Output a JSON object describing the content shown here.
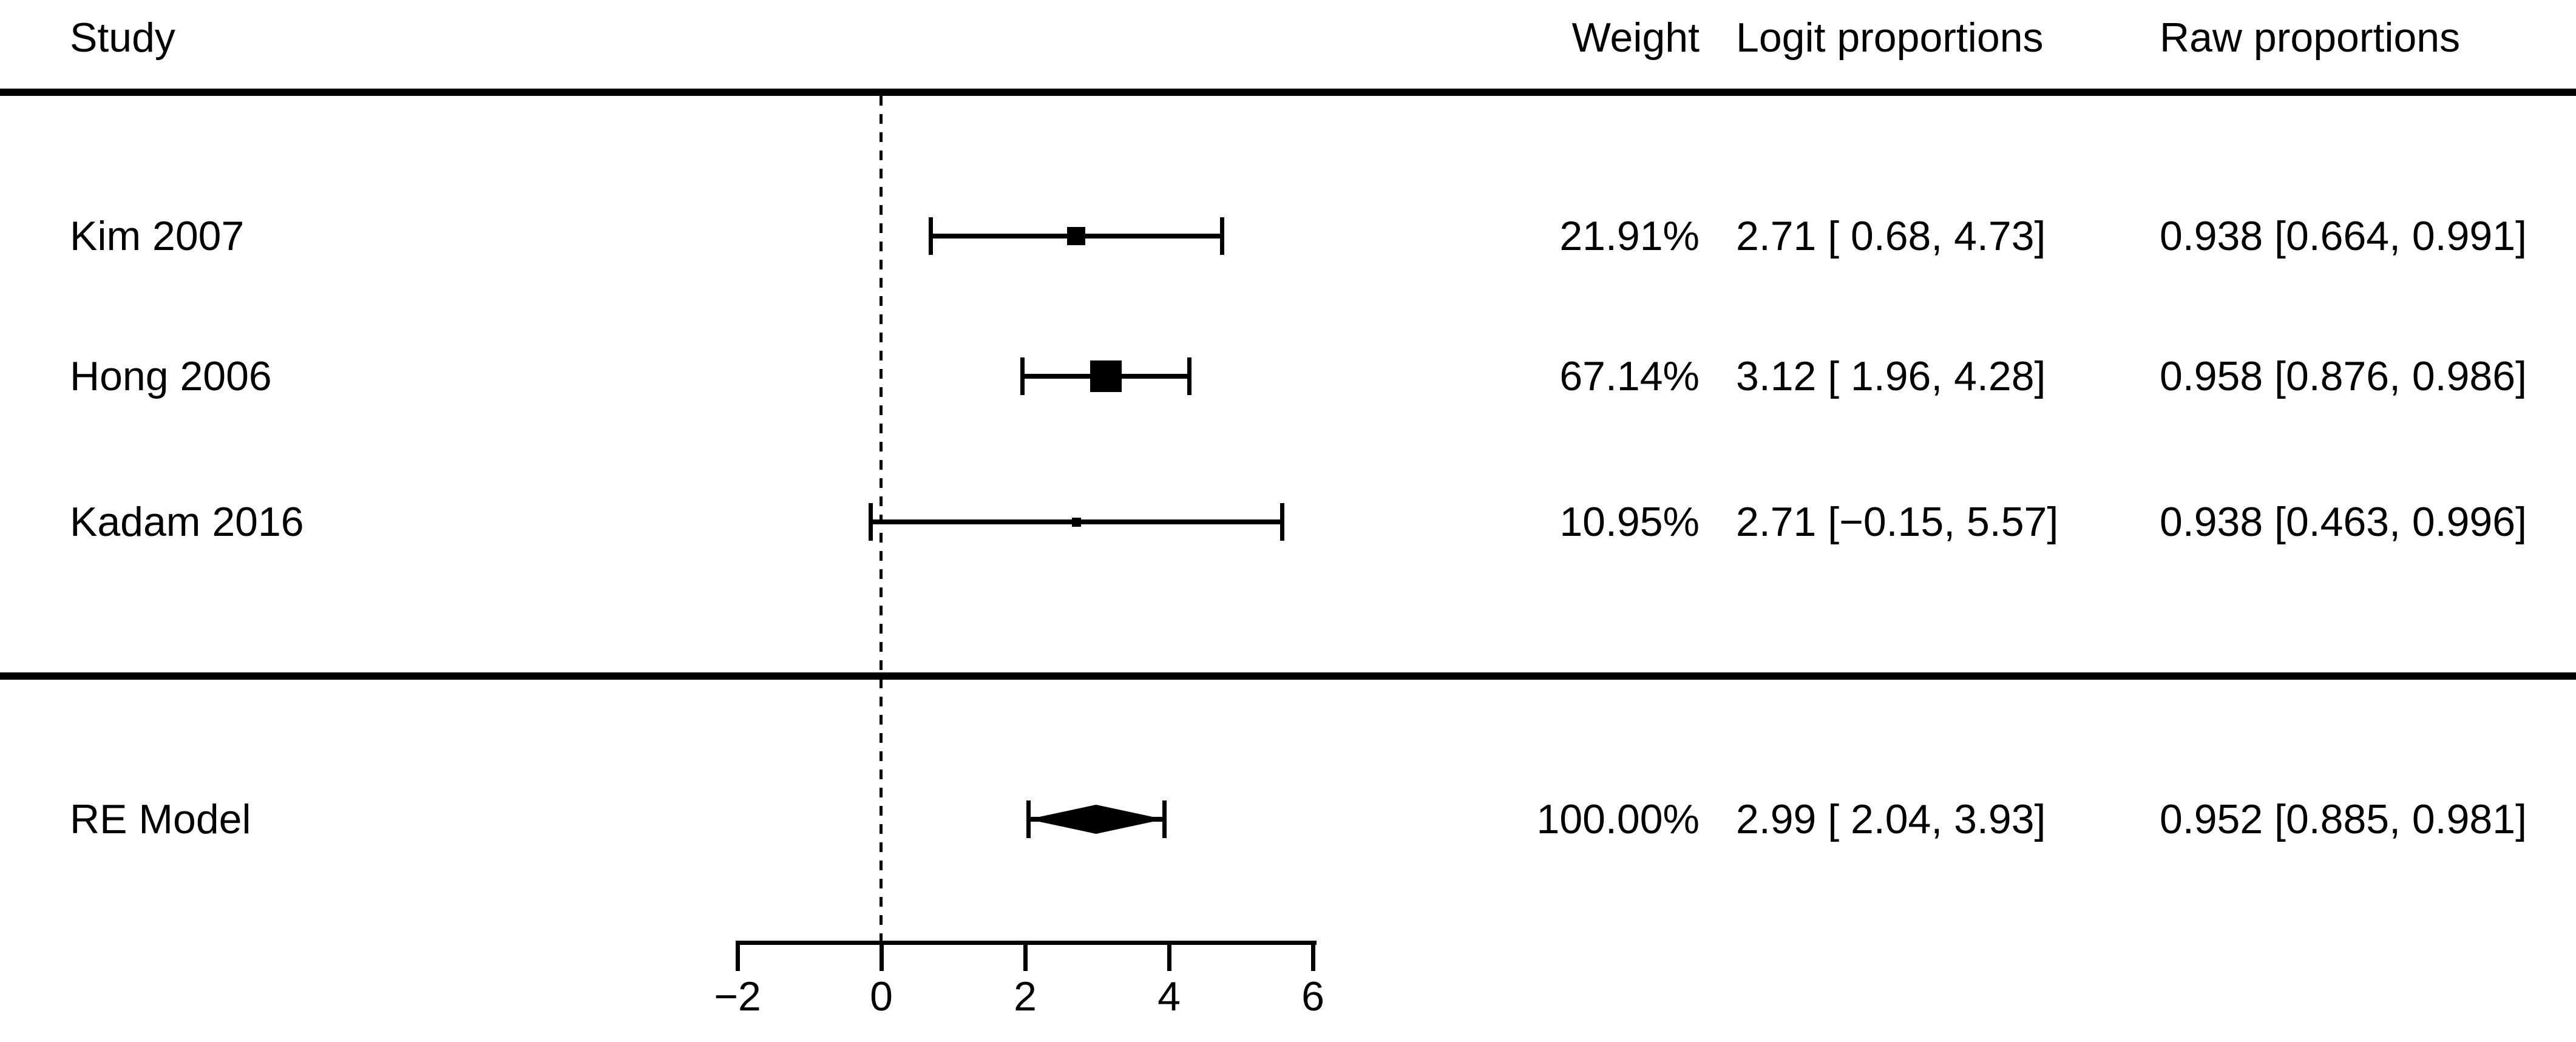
{
  "columns": {
    "study": "Study",
    "weight": "Weight",
    "logit": "Logit proportions",
    "raw": "Raw proportions"
  },
  "colors": {
    "ink": "#000000",
    "background": "#ffffff"
  },
  "chart_data": {
    "type": "forest",
    "x_axis": {
      "range": [
        -2,
        6
      ],
      "ticks": [
        -2,
        0,
        2,
        4,
        6
      ],
      "tick_labels": [
        "−2",
        "0",
        "2",
        "4",
        "6"
      ],
      "reference_line": 0
    },
    "studies": [
      {
        "label": "Kim 2007",
        "weight": "21.91%",
        "estimate": 2.71,
        "ci": [
          0.68,
          4.73
        ],
        "logit_label": "2.71 [ 0.68, 4.73]",
        "raw_label": "0.938 [0.664, 0.991]",
        "marker_px": 30
      },
      {
        "label": "Hong 2006",
        "weight": "67.14%",
        "estimate": 3.12,
        "ci": [
          1.96,
          4.28
        ],
        "logit_label": "3.12 [ 1.96, 4.28]",
        "raw_label": "0.958 [0.876, 0.986]",
        "marker_px": 52
      },
      {
        "label": "Kadam 2016",
        "weight": "10.95%",
        "estimate": 2.71,
        "ci": [
          -0.15,
          5.57
        ],
        "logit_label": "2.71 [−0.15, 5.57]",
        "raw_label": "0.938 [0.463, 0.996]",
        "marker_px": 15
      }
    ],
    "summary": {
      "label": "RE Model",
      "weight": "100.00%",
      "estimate": 2.99,
      "ci": [
        2.04,
        3.93
      ],
      "logit_label": "2.99 [ 2.04, 3.93]",
      "raw_label": "0.952 [0.885, 0.981]"
    }
  }
}
